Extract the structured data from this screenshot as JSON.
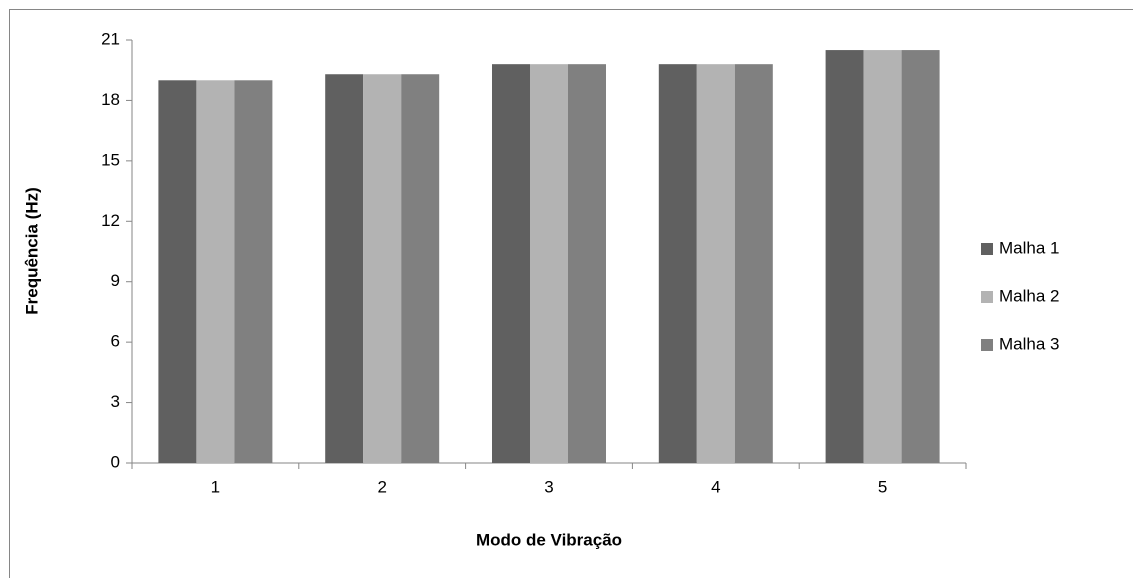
{
  "chart_data": {
    "type": "bar",
    "x_label": "Modo de Vibração",
    "y_label": "Frequência (Hz)",
    "categories": [
      "1",
      "2",
      "3",
      "4",
      "5"
    ],
    "series": [
      {
        "name": "Malha 1",
        "color": "#606060",
        "values": [
          19.0,
          19.3,
          19.8,
          19.8,
          20.5
        ]
      },
      {
        "name": "Malha 2",
        "color": "#b3b3b3",
        "values": [
          19.0,
          19.3,
          19.8,
          19.8,
          20.5
        ]
      },
      {
        "name": "Malha 3",
        "color": "#808080",
        "values": [
          19.0,
          19.3,
          19.8,
          19.8,
          20.5
        ]
      }
    ],
    "ylim": [
      0,
      21
    ],
    "yticks": [
      0,
      3,
      6,
      9,
      12,
      15,
      18,
      21
    ],
    "grid": false,
    "legend": "right"
  }
}
